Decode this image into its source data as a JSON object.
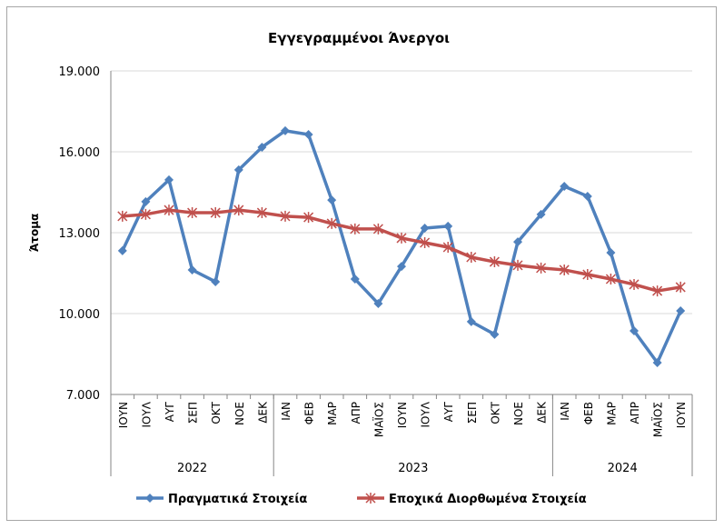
{
  "chart_data": {
    "type": "line",
    "title": "Εγγεγραμμένοι Άνεργοι",
    "ylabel": "Άτομα",
    "xlabel": "",
    "ylim": [
      7000,
      19000
    ],
    "yticks": [
      7000,
      10000,
      13000,
      16000,
      19000
    ],
    "ytick_labels": [
      "7.000",
      "10.000",
      "13.000",
      "16.000",
      "19.000"
    ],
    "grid": true,
    "legend": "bottom",
    "categories": [
      "ΙΟΥΝ",
      "ΙΟΥΛ",
      "ΑΥΓ",
      "ΣΕΠ",
      "ΟΚΤ",
      "ΝΟΕ",
      "ΔΕΚ",
      "ΙΑΝ",
      "ΦΕΒ",
      "ΜΑΡ",
      "ΑΠΡ",
      "ΜΑΪΟΣ",
      "ΙΟΥΝ",
      "ΙΟΥΛ",
      "ΑΥΓ",
      "ΣΕΠ",
      "ΟΚΤ",
      "ΝΟΕ",
      "ΔΕΚ",
      "ΙΑΝ",
      "ΦΕΒ",
      "ΜΑΡ",
      "ΑΠΡ",
      "ΜΑΪΟΣ",
      "ΙΟΥΝ"
    ],
    "groups": [
      {
        "label": "2022",
        "count": 7
      },
      {
        "label": "2023",
        "count": 12
      },
      {
        "label": "2024",
        "count": 6
      }
    ],
    "series": [
      {
        "name": "Πραγματικά Στοιχεία",
        "color": "#4f81bd",
        "marker": "diamond",
        "values": [
          12330,
          14150,
          14960,
          11620,
          11180,
          15330,
          16170,
          16780,
          16640,
          14210,
          11280,
          10370,
          11750,
          13170,
          13240,
          9700,
          9230,
          12660,
          13680,
          14720,
          14350,
          12260,
          9360,
          8180,
          10100
        ]
      },
      {
        "name": "Εποχικά Διορθωμένα Στοιχεία",
        "color": "#c0504d",
        "marker": "star",
        "values": [
          13610,
          13680,
          13840,
          13740,
          13740,
          13840,
          13740,
          13610,
          13570,
          13340,
          13140,
          13140,
          12800,
          12630,
          12460,
          12090,
          11920,
          11790,
          11690,
          11620,
          11450,
          11280,
          11080,
          10840,
          10980
        ]
      }
    ]
  }
}
